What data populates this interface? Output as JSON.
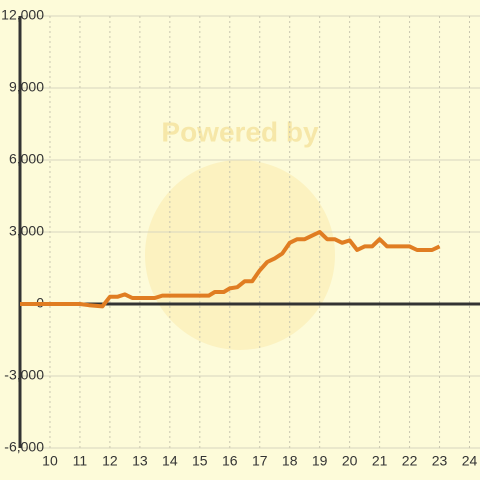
{
  "chart_data": {
    "type": "line",
    "watermark": "Powered by",
    "x": [
      9,
      11,
      11.3,
      11.75,
      12,
      12.25,
      12.5,
      12.75,
      13,
      13.5,
      13.75,
      15,
      15.3,
      15.5,
      15.8,
      16,
      16.25,
      16.5,
      16.75,
      17,
      17.25,
      17.5,
      17.75,
      18,
      18.25,
      18.5,
      18.75,
      19,
      19.25,
      19.5,
      19.75,
      20,
      20.25,
      20.5,
      20.75,
      21,
      21.25,
      22,
      22.25,
      22.75,
      23
    ],
    "series": [
      {
        "color": "#e07d22",
        "values": [
          0,
          0,
          -50,
          -100,
          300,
          300,
          400,
          250,
          250,
          250,
          350,
          350,
          350,
          500,
          500,
          650,
          700,
          950,
          950,
          1400,
          1750,
          1900,
          2100,
          2550,
          2700,
          2700,
          2850,
          3000,
          2700,
          2700,
          2550,
          2650,
          2250,
          2400,
          2400,
          2700,
          2400,
          2400,
          2250,
          2250,
          2400
        ]
      }
    ],
    "xlim": [
      9,
      24.35
    ],
    "ylim": [
      -6000,
      12000
    ],
    "xticks": [
      10,
      11,
      12,
      13,
      14,
      15,
      16,
      17,
      18,
      19,
      20,
      21,
      22,
      23,
      24
    ],
    "yticks": [
      {
        "value": -6000,
        "label": "-6,000"
      },
      {
        "value": -3000,
        "label": "-3,000"
      },
      0,
      {
        "value": 3000,
        "label": "3,000"
      },
      {
        "value": 6000,
        "label": "6,000"
      },
      {
        "value": 9000,
        "label": "9,000"
      },
      {
        "value": 12000,
        "label": "12,000"
      }
    ],
    "grid": true
  }
}
